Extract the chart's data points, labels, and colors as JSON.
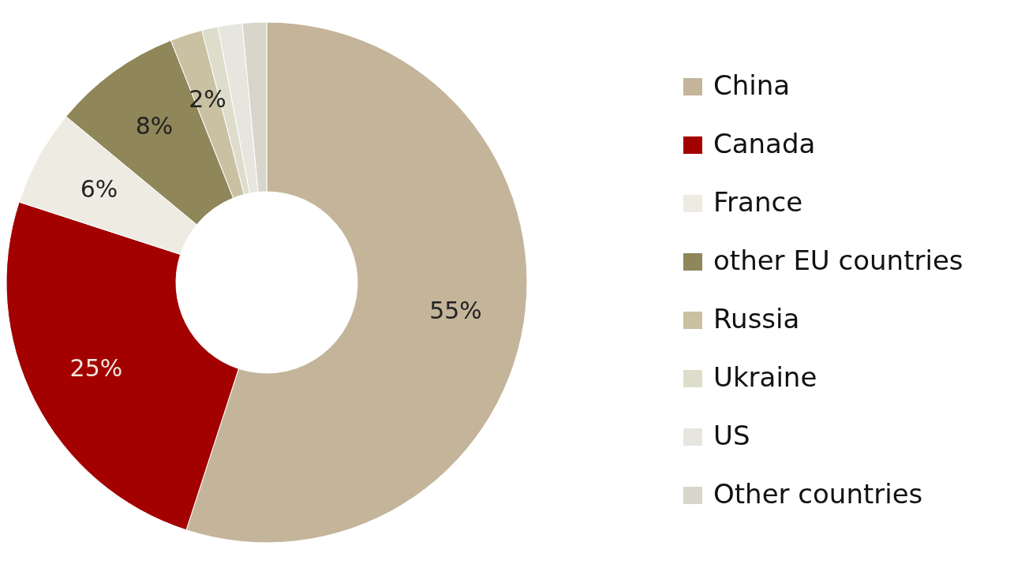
{
  "chart_data": {
    "type": "donut",
    "categories": [
      "China",
      "Canada",
      "France",
      "other EU countries",
      "Russia",
      "Ukraine",
      "US",
      "Other countries"
    ],
    "values": [
      55,
      25,
      6,
      8,
      2,
      1,
      1.5,
      1.5
    ],
    "colors": [
      "#c4b49a",
      "#a30000",
      "#eeebe2",
      "#8f8659",
      "#c9c1a2",
      "#dedccb",
      "#e6e6df",
      "#d8d5ca"
    ],
    "value_labels": [
      "55%",
      "25%",
      "6%",
      "8%",
      "2%",
      null,
      null,
      null
    ],
    "legend": "right"
  }
}
